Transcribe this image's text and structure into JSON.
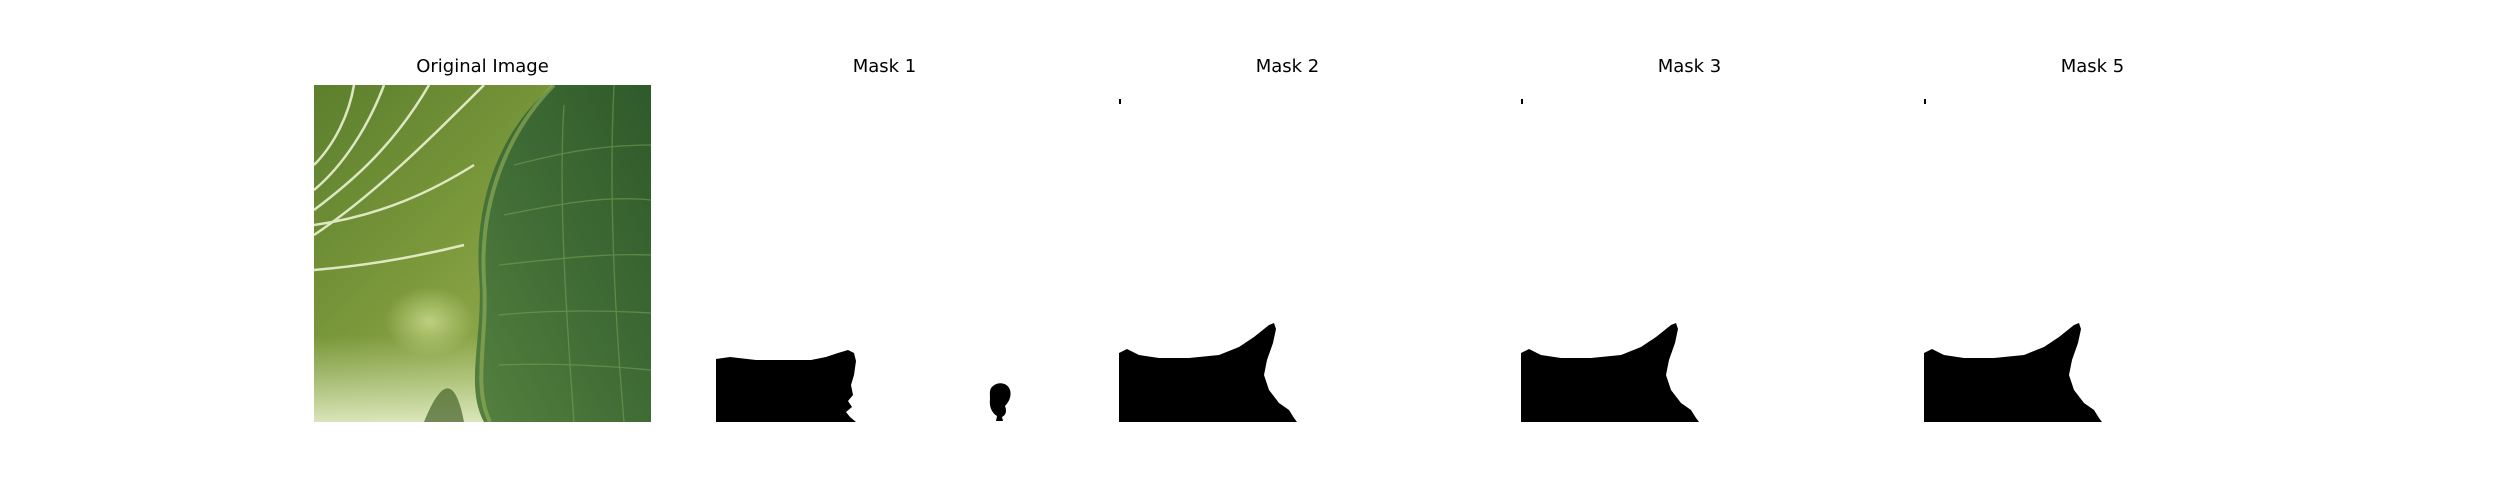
{
  "panels": [
    {
      "title": "Original Image",
      "kind": "photo-leaf"
    },
    {
      "title": "Mask 1",
      "kind": "mask"
    },
    {
      "title": "Mask 2",
      "kind": "mask"
    },
    {
      "title": "Mask 3",
      "kind": "mask"
    },
    {
      "title": "Mask 5",
      "kind": "mask"
    }
  ],
  "colors": {
    "background": "#ffffff",
    "mask_fill": "#000000",
    "leaf_dark": "#3f6a2e",
    "leaf_mid": "#5f8a3a",
    "leaf_light": "#a9c46a",
    "vein": "#e6efcf"
  }
}
